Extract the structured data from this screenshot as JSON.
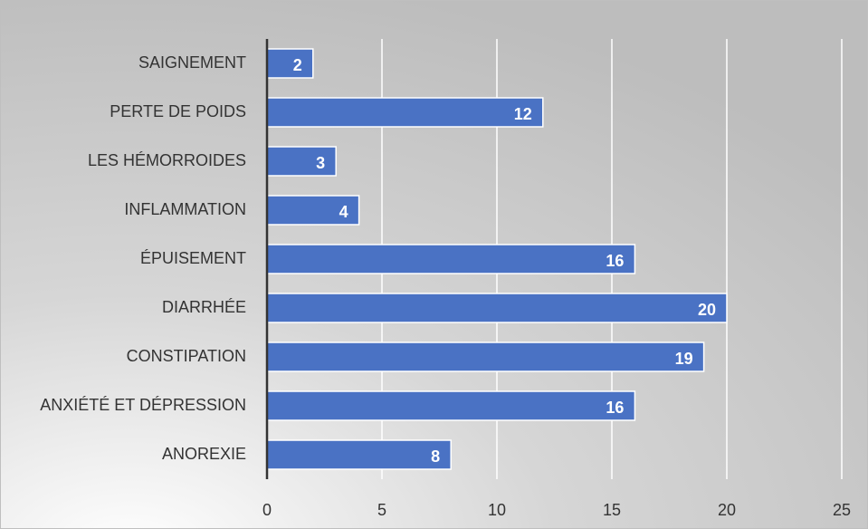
{
  "chart_data": {
    "type": "bar",
    "orientation": "horizontal",
    "categories": [
      "SAIGNEMENT",
      "PERTE DE POIDS",
      "LES HÉMORROIDES",
      "INFLAMMATION",
      "ÉPUISEMENT",
      "DIARRHÉE",
      "CONSTIPATION",
      "ANXIÉTÉ ET DÉPRESSION",
      "ANOREXIE"
    ],
    "values": [
      2,
      12,
      3,
      4,
      16,
      20,
      19,
      16,
      8
    ],
    "color": "#4a72c4",
    "xlim": [
      0,
      25
    ],
    "xticks": [
      0,
      5,
      10,
      15,
      20,
      25
    ],
    "grid": true
  }
}
